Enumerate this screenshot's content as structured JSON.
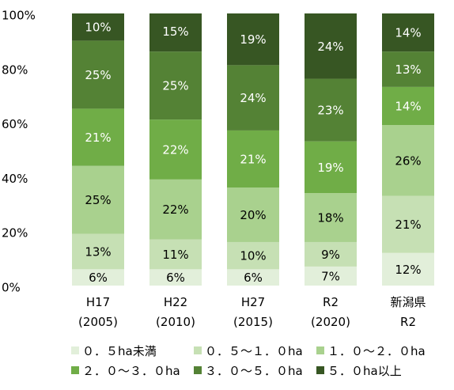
{
  "chart_data": {
    "type": "stacked_bar",
    "categories": [
      "H17\n(2005)",
      "H22\n(2010)",
      "H27\n(2015)",
      "R2\n(2020)",
      "新潟県\nR2"
    ],
    "series": [
      {
        "name": "０．５ha未満",
        "color": "#e2efda",
        "values": [
          6,
          6,
          6,
          7,
          12
        ],
        "value_labels": [
          "6%",
          "6%",
          "6%",
          "7%",
          "12%"
        ]
      },
      {
        "name": "０．５～１．０ha",
        "color": "#c6e0b4",
        "values": [
          13,
          11,
          10,
          9,
          21
        ],
        "value_labels": [
          "13%",
          "11%",
          "10%",
          "9%",
          "21%"
        ]
      },
      {
        "name": "１．０～２．０ha",
        "color": "#a9d18e",
        "values": [
          25,
          22,
          20,
          18,
          26
        ],
        "value_labels": [
          "25%",
          "22%",
          "20%",
          "18%",
          "26%"
        ]
      },
      {
        "name": "２．０～３．０ha",
        "color": "#70ad47",
        "values": [
          21,
          22,
          21,
          19,
          14
        ],
        "value_labels": [
          "21%",
          "22%",
          "21%",
          "19%",
          "14%"
        ]
      },
      {
        "name": "３．０～５．０ha",
        "color": "#548235",
        "values": [
          25,
          25,
          24,
          23,
          13
        ],
        "value_labels": [
          "25%",
          "25%",
          "24%",
          "23%",
          "13%"
        ]
      },
      {
        "name": "５．０ha以上",
        "color": "#375623",
        "values": [
          10,
          15,
          19,
          24,
          14
        ],
        "value_labels": [
          "10%",
          "15%",
          "19%",
          "24%",
          "14%"
        ]
      }
    ],
    "ylim": [
      0,
      100
    ],
    "yticks": [
      {
        "value": 0,
        "label": "0%"
      },
      {
        "value": 20,
        "label": "20%"
      },
      {
        "value": 40,
        "label": "40%"
      },
      {
        "value": 60,
        "label": "60%"
      },
      {
        "value": 80,
        "label": "80%"
      },
      {
        "value": 100,
        "label": "100%"
      }
    ]
  }
}
